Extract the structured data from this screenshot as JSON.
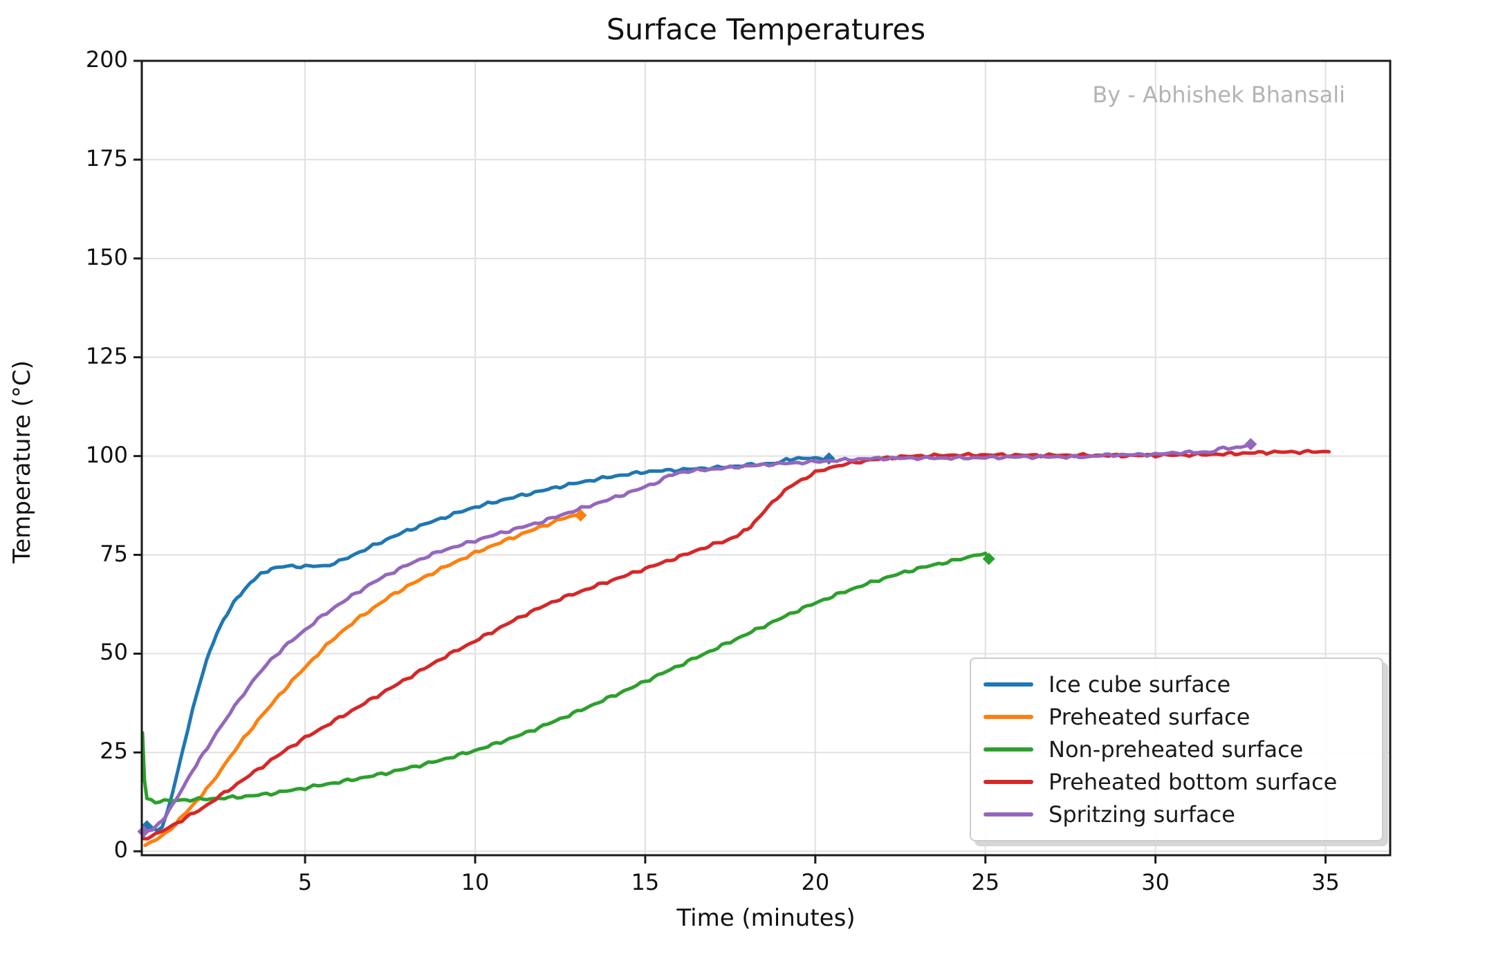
{
  "figure": {
    "title": "Surface Temperatures",
    "watermark": "By - Abhishek Bhansali",
    "xlabel": "Time (minutes)",
    "ylabel": "Temperature (°C)"
  },
  "chart_data": {
    "type": "line",
    "title": "Surface Temperatures",
    "xlabel": "Time (minutes)",
    "ylabel": "Temperature (°C)",
    "xlim": [
      0.2,
      36.9
    ],
    "ylim": [
      -1,
      200
    ],
    "xticks": [
      5,
      10,
      15,
      20,
      25,
      30,
      35
    ],
    "yticks": [
      0,
      25,
      50,
      75,
      100,
      125,
      150,
      175,
      200
    ],
    "grid": true,
    "grid_color": "#e0e0e0",
    "spine_color": "#1a1a1a",
    "legend_position": "lower right",
    "series": [
      {
        "name": "Ice cube surface",
        "color": "#1f77b4",
        "marker_start": true,
        "marker_end": true,
        "points": [
          [
            0.35,
            6.3
          ],
          [
            0.5,
            5.6
          ],
          [
            0.65,
            5.3
          ],
          [
            0.8,
            6.5
          ],
          [
            0.95,
            10
          ],
          [
            1.1,
            14.5
          ],
          [
            1.25,
            20
          ],
          [
            1.4,
            25.5
          ],
          [
            1.55,
            30.5
          ],
          [
            1.7,
            36
          ],
          [
            1.85,
            41
          ],
          [
            2.0,
            45.5
          ],
          [
            2.2,
            50.5
          ],
          [
            2.4,
            55
          ],
          [
            2.6,
            58.5
          ],
          [
            2.8,
            61.5
          ],
          [
            3.0,
            64
          ],
          [
            3.2,
            66
          ],
          [
            3.4,
            68
          ],
          [
            3.6,
            69.5
          ],
          [
            3.8,
            70.6
          ],
          [
            4.0,
            71.4
          ],
          [
            4.2,
            71.9
          ],
          [
            4.5,
            72.1
          ],
          [
            5.0,
            72.1
          ],
          [
            5.6,
            72.2
          ],
          [
            6.0,
            73.3
          ],
          [
            6.5,
            75.3
          ],
          [
            7.0,
            77.3
          ],
          [
            7.5,
            79.3
          ],
          [
            8.0,
            81.1
          ],
          [
            8.5,
            82.7
          ],
          [
            9.0,
            84.2
          ],
          [
            9.5,
            85.7
          ],
          [
            10.0,
            87.1
          ],
          [
            10.5,
            88.2
          ],
          [
            11.0,
            89.3
          ],
          [
            11.5,
            90.3
          ],
          [
            12.0,
            91.3
          ],
          [
            12.5,
            92.3
          ],
          [
            13.0,
            93.2
          ],
          [
            13.5,
            94.0
          ],
          [
            14.0,
            94.8
          ],
          [
            14.5,
            95.4
          ],
          [
            15.0,
            96.0
          ],
          [
            15.5,
            96.3
          ],
          [
            16.0,
            96.5
          ],
          [
            16.5,
            96.8
          ],
          [
            17.0,
            97.0
          ],
          [
            17.5,
            97.3
          ],
          [
            18.0,
            97.7
          ],
          [
            18.5,
            98.0
          ],
          [
            19.0,
            98.3
          ],
          [
            19.15,
            99.2
          ],
          [
            19.5,
            99.4
          ],
          [
            20.0,
            99.4
          ],
          [
            20.4,
            99.4
          ]
        ]
      },
      {
        "name": "Preheated surface",
        "color": "#ff7f0e",
        "marker_start": false,
        "marker_end": true,
        "points": [
          [
            0.3,
            1.5
          ],
          [
            0.6,
            2.8
          ],
          [
            0.9,
            4.5
          ],
          [
            1.2,
            7
          ],
          [
            1.5,
            9.8
          ],
          [
            1.8,
            12.6
          ],
          [
            2.1,
            15.5
          ],
          [
            2.4,
            19
          ],
          [
            2.8,
            24
          ],
          [
            3.2,
            28.5
          ],
          [
            3.6,
            33
          ],
          [
            4.0,
            37
          ],
          [
            4.5,
            42
          ],
          [
            5.0,
            46.5
          ],
          [
            5.5,
            51
          ],
          [
            6.0,
            55
          ],
          [
            6.5,
            58.5
          ],
          [
            7.0,
            61.5
          ],
          [
            7.5,
            64.5
          ],
          [
            8.0,
            67
          ],
          [
            8.5,
            69.3
          ],
          [
            9.0,
            71.5
          ],
          [
            9.5,
            73.5
          ],
          [
            10.0,
            75.5
          ],
          [
            10.5,
            77.3
          ],
          [
            11.0,
            79
          ],
          [
            11.5,
            80.7
          ],
          [
            12.0,
            82.3
          ],
          [
            12.4,
            83.6
          ],
          [
            12.8,
            84.8
          ],
          [
            13.1,
            85
          ]
        ]
      },
      {
        "name": "Non-preheated surface",
        "color": "#2ca02c",
        "marker_start": false,
        "marker_end": true,
        "points": [
          [
            0.22,
            30
          ],
          [
            0.28,
            18
          ],
          [
            0.35,
            13.2
          ],
          [
            0.6,
            12.6
          ],
          [
            1.0,
            12.8
          ],
          [
            1.5,
            13.0
          ],
          [
            2.0,
            13.2
          ],
          [
            2.5,
            13.4
          ],
          [
            3.0,
            13.7
          ],
          [
            3.5,
            14.1
          ],
          [
            4.0,
            14.6
          ],
          [
            4.5,
            15.3
          ],
          [
            5.0,
            16.0
          ],
          [
            5.5,
            16.8
          ],
          [
            6.0,
            17.5
          ],
          [
            6.5,
            18.3
          ],
          [
            7.0,
            19.1
          ],
          [
            7.5,
            20.0
          ],
          [
            8.0,
            21.0
          ],
          [
            8.5,
            22.0
          ],
          [
            9.0,
            23.1
          ],
          [
            9.5,
            24.3
          ],
          [
            10.0,
            25.5
          ],
          [
            10.5,
            26.9
          ],
          [
            11.0,
            28.4
          ],
          [
            11.5,
            30.0
          ],
          [
            12.0,
            31.7
          ],
          [
            12.5,
            33.5
          ],
          [
            13.0,
            35.3
          ],
          [
            13.5,
            37.2
          ],
          [
            14.0,
            39.1
          ],
          [
            14.5,
            41.0
          ],
          [
            15.0,
            43.0
          ],
          [
            15.5,
            45.0
          ],
          [
            16.0,
            47.0
          ],
          [
            16.5,
            49.0
          ],
          [
            17.0,
            51.0
          ],
          [
            17.5,
            53.0
          ],
          [
            18.0,
            55.0
          ],
          [
            18.5,
            57.0
          ],
          [
            19.0,
            59.0
          ],
          [
            19.5,
            61.0
          ],
          [
            20.0,
            62.8
          ],
          [
            20.5,
            64.5
          ],
          [
            21.0,
            66.1
          ],
          [
            21.5,
            67.6
          ],
          [
            22.0,
            69.0
          ],
          [
            22.5,
            70.3
          ],
          [
            23.0,
            71.5
          ],
          [
            23.5,
            72.5
          ],
          [
            24.0,
            73.4
          ],
          [
            24.4,
            74.2
          ],
          [
            24.8,
            75.2
          ],
          [
            25.0,
            75.0
          ],
          [
            25.1,
            74.0
          ]
        ]
      },
      {
        "name": "Preheated bottom surface",
        "color": "#d62728",
        "marker_start": false,
        "marker_end": false,
        "points": [
          [
            0.25,
            3.2
          ],
          [
            0.6,
            4.2
          ],
          [
            1.0,
            6.0
          ],
          [
            1.5,
            8.5
          ],
          [
            2.0,
            11.0
          ],
          [
            2.5,
            14.0
          ],
          [
            3.0,
            17.0
          ],
          [
            3.5,
            20.0
          ],
          [
            4.0,
            23.0
          ],
          [
            4.5,
            26.0
          ],
          [
            5.0,
            28.7
          ],
          [
            5.5,
            31.2
          ],
          [
            6.0,
            33.7
          ],
          [
            6.5,
            36.2
          ],
          [
            7.0,
            38.7
          ],
          [
            7.5,
            41.2
          ],
          [
            8.0,
            43.7
          ],
          [
            8.5,
            46.2
          ],
          [
            9.0,
            48.7
          ],
          [
            9.5,
            51.0
          ],
          [
            10.0,
            53.2
          ],
          [
            10.5,
            55.5
          ],
          [
            11.0,
            57.8
          ],
          [
            11.5,
            60.0
          ],
          [
            12.0,
            62.0
          ],
          [
            12.5,
            63.9
          ],
          [
            13.0,
            65.4
          ],
          [
            13.5,
            67.0
          ],
          [
            14.0,
            68.5
          ],
          [
            14.5,
            70.0
          ],
          [
            15.0,
            71.5
          ],
          [
            15.5,
            73.0
          ],
          [
            16.0,
            74.5
          ],
          [
            16.5,
            76.1
          ],
          [
            17.0,
            77.6
          ],
          [
            17.4,
            78.7
          ],
          [
            17.7,
            79.8
          ],
          [
            18.0,
            81.5
          ],
          [
            18.3,
            84.0
          ],
          [
            18.6,
            87.0
          ],
          [
            19.0,
            90.5
          ],
          [
            19.3,
            92.5
          ],
          [
            19.6,
            94.0
          ],
          [
            20.0,
            95.8
          ],
          [
            20.4,
            97.0
          ],
          [
            20.8,
            97.8
          ],
          [
            21.2,
            98.4
          ],
          [
            21.6,
            99.0
          ],
          [
            22.0,
            99.4
          ],
          [
            22.5,
            99.8
          ],
          [
            23.0,
            100.0
          ],
          [
            24.0,
            100.2
          ],
          [
            25.0,
            100.3
          ],
          [
            26.0,
            100.2
          ],
          [
            27.0,
            100.2
          ],
          [
            28.0,
            100.2
          ],
          [
            29.0,
            100.1
          ],
          [
            30.0,
            100.2
          ],
          [
            31.0,
            100.3
          ],
          [
            32.0,
            100.5
          ],
          [
            32.8,
            100.8
          ],
          [
            33.5,
            101.0
          ],
          [
            35.1,
            101.1
          ]
        ]
      },
      {
        "name": "Spritzing surface",
        "color": "#9467bd",
        "marker_start": true,
        "marker_end": true,
        "points": [
          [
            0.25,
            5.0
          ],
          [
            0.5,
            5.4
          ],
          [
            0.8,
            7.8
          ],
          [
            1.1,
            11.5
          ],
          [
            1.4,
            16
          ],
          [
            1.7,
            20.5
          ],
          [
            2.0,
            24.5
          ],
          [
            2.4,
            30
          ],
          [
            2.8,
            35
          ],
          [
            3.2,
            40
          ],
          [
            3.6,
            44.5
          ],
          [
            4.0,
            48.5
          ],
          [
            4.5,
            52.5
          ],
          [
            5.0,
            56
          ],
          [
            5.5,
            59.5
          ],
          [
            6.0,
            62.5
          ],
          [
            6.5,
            65.3
          ],
          [
            7.0,
            68
          ],
          [
            7.5,
            70.3
          ],
          [
            8.0,
            72.4
          ],
          [
            8.5,
            74.3
          ],
          [
            9.0,
            76
          ],
          [
            9.5,
            77.3
          ],
          [
            10.0,
            78.6
          ],
          [
            10.5,
            79.9
          ],
          [
            11.0,
            81.1
          ],
          [
            11.5,
            82.3
          ],
          [
            12.0,
            83.5
          ],
          [
            12.5,
            85.0
          ],
          [
            13.0,
            86.4
          ],
          [
            13.5,
            87.8
          ],
          [
            14.0,
            89.2
          ],
          [
            14.5,
            90.7
          ],
          [
            15.0,
            92.2
          ],
          [
            15.4,
            93.6
          ],
          [
            15.7,
            95.0
          ],
          [
            16.0,
            95.8
          ],
          [
            16.4,
            96.3
          ],
          [
            17.0,
            96.7
          ],
          [
            17.5,
            97.1
          ],
          [
            18.0,
            97.5
          ],
          [
            18.5,
            97.8
          ],
          [
            19.0,
            98.1
          ],
          [
            19.5,
            98.3
          ],
          [
            20.0,
            98.6
          ],
          [
            20.5,
            98.8
          ],
          [
            21.0,
            99.1
          ],
          [
            21.5,
            99.3
          ],
          [
            22.0,
            99.4
          ],
          [
            23.0,
            99.5
          ],
          [
            24.0,
            99.5
          ],
          [
            25.0,
            99.6
          ],
          [
            26.0,
            99.8
          ],
          [
            27.0,
            99.8
          ],
          [
            28.0,
            99.8
          ],
          [
            28.4,
            100.2
          ],
          [
            29.0,
            100.3
          ],
          [
            30.0,
            100.4
          ],
          [
            30.5,
            100.8
          ],
          [
            31.0,
            100.9
          ],
          [
            31.6,
            101.0
          ],
          [
            32.0,
            102.0
          ],
          [
            32.5,
            102.2
          ],
          [
            32.8,
            103.0
          ]
        ]
      }
    ]
  }
}
